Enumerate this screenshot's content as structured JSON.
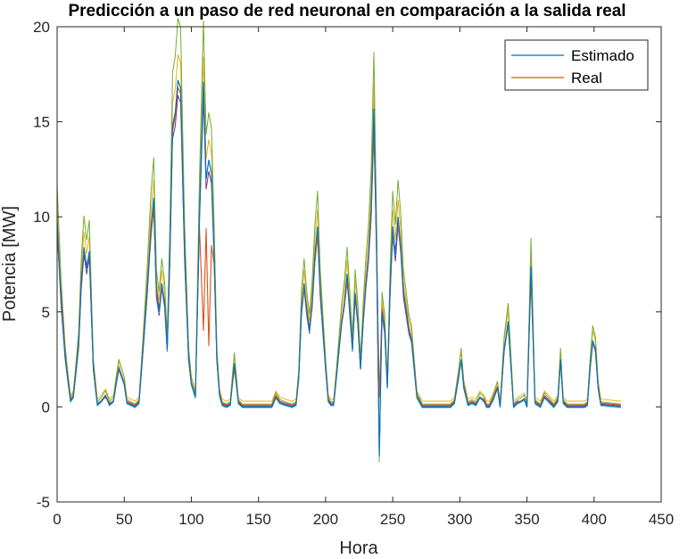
{
  "chart_data": {
    "type": "line",
    "title": "Predicción a un paso de red neuronal en comparación a la salida real",
    "xlabel": "Hora",
    "ylabel": "Potencia [MW]",
    "xlim": [
      0,
      450
    ],
    "ylim": [
      -5,
      20
    ],
    "xticks": [
      0,
      50,
      100,
      150,
      200,
      250,
      300,
      350,
      400,
      450
    ],
    "yticks": [
      -5,
      0,
      5,
      10,
      15,
      20
    ],
    "legend_position": "top-right",
    "grid": false,
    "series": [
      {
        "name": "Estimado",
        "color": "#0072BD",
        "x": [
          0,
          3,
          6,
          8,
          10,
          12,
          14,
          16,
          18,
          20,
          22,
          24,
          27,
          30,
          33,
          36,
          39,
          42,
          44,
          46,
          48,
          50,
          52,
          55,
          58,
          61,
          64,
          67,
          70,
          72,
          74,
          76,
          78,
          80,
          82,
          84,
          86,
          88,
          90,
          92,
          95,
          98,
          100,
          103,
          106,
          109,
          111,
          113,
          115,
          117,
          119,
          121,
          123,
          126,
          129,
          132,
          135,
          138,
          160,
          163,
          166,
          170,
          175,
          178,
          180,
          182,
          184,
          186,
          188,
          190,
          192,
          194,
          196,
          198,
          200,
          202,
          204,
          206,
          208,
          210,
          212,
          214,
          216,
          218,
          220,
          222,
          224,
          226,
          228,
          230,
          232,
          234,
          236,
          238,
          240,
          242,
          244,
          246,
          248,
          250,
          252,
          254,
          256,
          258,
          260,
          262,
          264,
          266,
          268,
          272,
          290,
          293,
          296,
          299,
          301,
          303,
          306,
          309,
          312,
          315,
          318,
          320,
          322,
          325,
          328,
          330,
          333,
          336,
          340,
          343,
          346,
          348,
          350,
          353,
          356,
          360,
          363,
          366,
          370,
          373,
          375,
          377,
          380,
          393,
          395,
          397,
          399,
          401,
          403,
          405,
          420
        ],
        "y": [
          9.8,
          5.5,
          2.6,
          1.4,
          0.3,
          0.5,
          1.8,
          3.2,
          6.5,
          8.4,
          7.3,
          8.2,
          2.0,
          0.1,
          0.3,
          0.6,
          0.1,
          0.3,
          1.2,
          2.0,
          1.6,
          1.2,
          0.2,
          0.1,
          0.0,
          0.2,
          3.0,
          6.0,
          9.5,
          11.0,
          6.0,
          5.0,
          6.5,
          5.5,
          3.0,
          8.0,
          14.8,
          15.5,
          17.2,
          16.8,
          8.0,
          2.5,
          1.2,
          0.5,
          10.0,
          17.1,
          12.0,
          13.0,
          12.3,
          8.0,
          2.5,
          0.6,
          0.1,
          0.0,
          0.1,
          2.3,
          0.2,
          0.0,
          0.0,
          0.5,
          0.2,
          0.1,
          0.0,
          0.1,
          1.5,
          5.0,
          6.5,
          5.0,
          4.0,
          5.5,
          8.0,
          9.5,
          6.0,
          4.0,
          2.0,
          0.3,
          0.1,
          0.1,
          1.5,
          3.0,
          4.5,
          5.5,
          7.0,
          5.0,
          3.0,
          6.0,
          4.5,
          2.0,
          4.5,
          6.5,
          8.0,
          10.5,
          15.7,
          8.0,
          -2.6,
          5.0,
          4.0,
          1.0,
          6.0,
          9.5,
          8.0,
          10.0,
          8.5,
          6.0,
          5.0,
          4.0,
          3.5,
          2.0,
          0.5,
          0.0,
          0.0,
          0.0,
          0.2,
          1.5,
          2.5,
          1.0,
          0.1,
          0.2,
          0.1,
          0.5,
          0.3,
          0.0,
          0.0,
          0.4,
          1.0,
          0.0,
          3.0,
          4.5,
          0.0,
          0.2,
          0.3,
          0.4,
          0.0,
          7.4,
          0.2,
          0.0,
          0.5,
          0.3,
          0.0,
          0.3,
          2.5,
          0.2,
          0.0,
          0.0,
          0.1,
          2.0,
          3.5,
          3.0,
          1.0,
          0.1,
          0.0
        ]
      },
      {
        "name": "Real",
        "color": "#D95319",
        "x": [
          0,
          3,
          6,
          8,
          10,
          12,
          14,
          16,
          18,
          20,
          22,
          24,
          27,
          30,
          33,
          36,
          39,
          42,
          44,
          46,
          48,
          50,
          52,
          55,
          58,
          61,
          64,
          67,
          70,
          72,
          74,
          76,
          78,
          80,
          82,
          84,
          86,
          88,
          90,
          92,
          95,
          98,
          100,
          103,
          106,
          109,
          111,
          113,
          115,
          117,
          119,
          121,
          123,
          126,
          129,
          132,
          135,
          138,
          160,
          163,
          166,
          170,
          175,
          178,
          180,
          182,
          184,
          186,
          188,
          190,
          192,
          194,
          196,
          198,
          200,
          202,
          204,
          206,
          208,
          210,
          212,
          214,
          216,
          218,
          220,
          222,
          224,
          226,
          228,
          230,
          232,
          234,
          236,
          238,
          240,
          242,
          244,
          246,
          248,
          250,
          252,
          254,
          256,
          258,
          260,
          262,
          264,
          266,
          268,
          272,
          290,
          293,
          296,
          299,
          301,
          303,
          306,
          309,
          312,
          315,
          318,
          320,
          322,
          325,
          328,
          330,
          333,
          336,
          340,
          343,
          346,
          348,
          350,
          353,
          356,
          360,
          363,
          366,
          370,
          373,
          375,
          377,
          380,
          393,
          395,
          397,
          399,
          401,
          403,
          405,
          420
        ],
        "y": [
          9.0,
          6.0,
          2.8,
          1.6,
          0.4,
          0.6,
          2.0,
          3.5,
          6.8,
          8.2,
          7.5,
          8.0,
          2.2,
          0.2,
          0.3,
          0.5,
          0.2,
          0.3,
          1.3,
          2.1,
          1.7,
          1.3,
          0.3,
          0.2,
          0.1,
          0.3,
          3.2,
          6.2,
          9.0,
          10.5,
          6.3,
          5.2,
          6.2,
          5.6,
          3.2,
          8.3,
          14.5,
          15.3,
          16.8,
          16.5,
          8.5,
          2.8,
          1.3,
          0.6,
          9.5,
          4.0,
          9.4,
          3.2,
          8.5,
          7.5,
          2.7,
          0.7,
          0.2,
          0.1,
          0.2,
          2.0,
          0.3,
          0.1,
          0.1,
          0.6,
          0.3,
          0.2,
          0.1,
          0.2,
          1.6,
          5.2,
          6.2,
          5.2,
          4.2,
          5.2,
          7.6,
          9.0,
          6.2,
          4.2,
          2.2,
          0.4,
          0.2,
          0.2,
          1.6,
          3.1,
          4.4,
          5.3,
          6.6,
          5.2,
          3.2,
          5.8,
          4.6,
          2.2,
          4.4,
          6.3,
          7.8,
          10.0,
          14.5,
          8.5,
          0.5,
          5.2,
          4.2,
          1.2,
          6.2,
          9.0,
          8.2,
          9.6,
          8.3,
          6.2,
          5.2,
          4.2,
          3.6,
          2.2,
          0.6,
          0.1,
          0.1,
          0.1,
          0.3,
          1.6,
          2.4,
          1.1,
          0.2,
          0.3,
          0.2,
          0.5,
          0.4,
          0.1,
          0.1,
          0.5,
          1.1,
          0.1,
          3.1,
          4.3,
          0.1,
          0.3,
          0.3,
          0.4,
          0.1,
          6.8,
          0.3,
          0.1,
          0.6,
          0.4,
          0.1,
          0.4,
          2.4,
          0.3,
          0.1,
          0.1,
          0.2,
          2.1,
          3.4,
          3.1,
          1.1,
          0.2,
          0.1
        ]
      }
    ]
  },
  "extra_lines": {
    "colors": [
      "#EDB120",
      "#7E2F8E",
      "#77AC30",
      "#4DBEEE"
    ],
    "offsets": [
      [
        0.3,
        1.06
      ],
      [
        0.05,
        0.95
      ],
      [
        0.15,
        1.18
      ],
      [
        -0.05,
        1.0
      ]
    ]
  }
}
